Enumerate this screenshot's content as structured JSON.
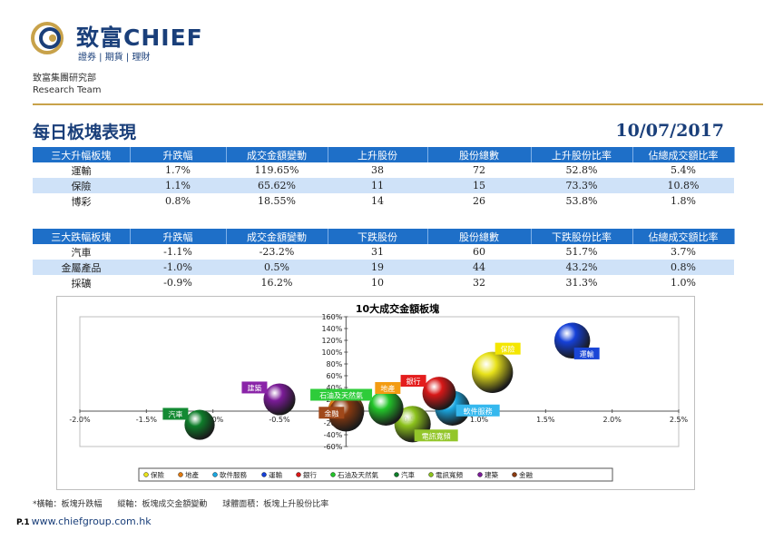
{
  "brand": {
    "name": "致富CHIEF",
    "tagline": "證券 | 期貨 | 理財"
  },
  "team": {
    "zh": "致富集團研究部",
    "en": "Research Team"
  },
  "page_title": "每日板塊表現",
  "date": "10/07/2017",
  "gainers": {
    "headers": [
      "三大升幅板塊",
      "升跌幅",
      "成交金額變動",
      "上升股份",
      "股份總數",
      "上升股份比率",
      "佔總成交額比率"
    ],
    "rows": [
      [
        "運輸",
        "1.7%",
        "119.65%",
        "38",
        "72",
        "52.8%",
        "5.4%"
      ],
      [
        "保險",
        "1.1%",
        "65.62%",
        "11",
        "15",
        "73.3%",
        "10.8%"
      ],
      [
        "博彩",
        "0.8%",
        "18.55%",
        "14",
        "26",
        "53.8%",
        "1.8%"
      ]
    ]
  },
  "losers": {
    "headers": [
      "三大跌幅板塊",
      "升跌幅",
      "成交金額變動",
      "下跌股份",
      "股份總數",
      "下跌股份比率",
      "佔總成交額比率"
    ],
    "rows": [
      [
        "汽車",
        "-1.1%",
        "-23.2%",
        "31",
        "60",
        "51.7%",
        "3.7%"
      ],
      [
        "金屬產品",
        "-1.0%",
        "0.5%",
        "19",
        "44",
        "43.2%",
        "0.8%"
      ],
      [
        "採礦",
        "-0.9%",
        "16.2%",
        "10",
        "32",
        "31.3%",
        "1.0%"
      ]
    ]
  },
  "chart_data": {
    "type": "scatter",
    "title": "10大成交金額板塊",
    "xlim": [
      -2.0,
      2.5
    ],
    "ylim": [
      -60,
      160
    ],
    "x_ticks": [
      "-2.0%",
      "-1.5%",
      "-1.0%",
      "-0.5%",
      "0.0%",
      "0.5%",
      "1.0%",
      "1.5%",
      "2.0%",
      "2.5%"
    ],
    "y_ticks": [
      "-60%",
      "-40%",
      "-20%",
      "0%",
      "20%",
      "40%",
      "60%",
      "80%",
      "100%",
      "120%",
      "140%",
      "160%"
    ],
    "series": [
      {
        "name": "保險",
        "x": 1.1,
        "y": 65.62,
        "size": 73.3,
        "color": "#e8e21a",
        "label_color": "#f4e600"
      },
      {
        "name": "地產",
        "x": 0.0,
        "y": 0,
        "size": 55,
        "color": "#e07a10",
        "label_color": "#f39c12"
      },
      {
        "name": "軟件服務",
        "x": 0.8,
        "y": 5,
        "size": 50,
        "color": "#1aa6e0",
        "label_color": "#35b8ee"
      },
      {
        "name": "運輸",
        "x": 1.7,
        "y": 119.65,
        "size": 52.8,
        "color": "#1540d8",
        "label_color": "#1a46d6"
      },
      {
        "name": "銀行",
        "x": 0.7,
        "y": 30,
        "size": 45,
        "color": "#d81818",
        "label_color": "#e41d1d"
      },
      {
        "name": "石油及天然氣",
        "x": 0.3,
        "y": 5,
        "size": 50,
        "color": "#23c42a",
        "label_color": "#2ecc3a"
      },
      {
        "name": "汽車",
        "x": -1.1,
        "y": -23.2,
        "size": 35,
        "color": "#0e7d2a",
        "label_color": "#138a33"
      },
      {
        "name": "電訊寬頻",
        "x": 0.5,
        "y": -22,
        "size": 55,
        "color": "#8cc21c",
        "label_color": "#93c62a"
      },
      {
        "name": "建築",
        "x": -0.5,
        "y": 20,
        "size": 40,
        "color": "#7b1b98",
        "label_color": "#8a24a8"
      },
      {
        "name": "金融",
        "x": 0.0,
        "y": -5,
        "size": 50,
        "color": "#8a3a10",
        "label_color": "#a0481a"
      }
    ]
  },
  "footnote": [
    "*橫軸：板塊升跌幅",
    "縱軸：板塊成交金額變動",
    "球體面積：板塊上升股份比率"
  ],
  "footer": {
    "page": "P.1",
    "url": "www.chiefgroup.com.hk"
  }
}
